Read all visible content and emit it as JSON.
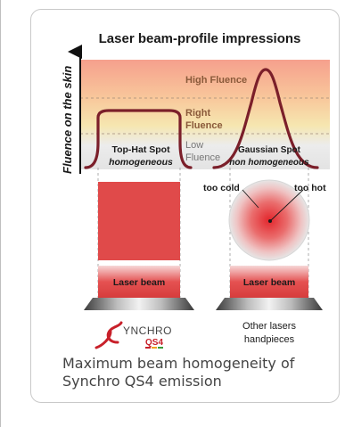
{
  "diagram": {
    "title": "Laser beam-profile impressions",
    "y_axis_label": "Fluence on the skin",
    "zones": {
      "high": "High Fluence",
      "right_line1": "Right",
      "right_line2": "Fluence",
      "low_line1": "Low",
      "low_line2": "Fluence"
    },
    "left_profile": {
      "name": "Top-Hat Spot",
      "desc": "homogeneous",
      "beam_label": "Laser beam"
    },
    "right_profile": {
      "name": "Gaussian Spot",
      "desc": "non homogeneous",
      "beam_label": "Laser beam"
    },
    "annotations": {
      "too_cold": "too cold",
      "too_hot": "too hot"
    },
    "logo": {
      "text_main": "YNCHRO",
      "text_sub": "QS4"
    },
    "other_label_line1": "Other lasers",
    "other_label_line2": "handpieces",
    "colors": {
      "curve": "#7b1f2a",
      "beam_red": "#e04a4a",
      "high_zone": "#f7a38e",
      "low_zone": "#e0e0e0",
      "logo_red": "#c8202a"
    }
  },
  "caption": {
    "line1": "Maximum beam homogeneity of",
    "line2": "Synchro QS4 emission"
  }
}
